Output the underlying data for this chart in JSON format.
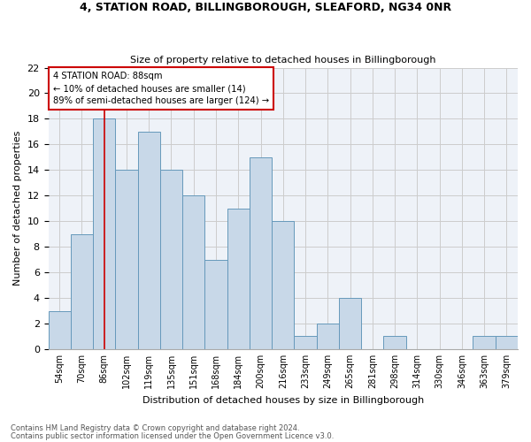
{
  "title1": "4, STATION ROAD, BILLINGBOROUGH, SLEAFORD, NG34 0NR",
  "title2": "Size of property relative to detached houses in Billingborough",
  "xlabel": "Distribution of detached houses by size in Billingborough",
  "ylabel": "Number of detached properties",
  "categories": [
    "54sqm",
    "70sqm",
    "86sqm",
    "102sqm",
    "119sqm",
    "135sqm",
    "151sqm",
    "168sqm",
    "184sqm",
    "200sqm",
    "216sqm",
    "233sqm",
    "249sqm",
    "265sqm",
    "281sqm",
    "298sqm",
    "314sqm",
    "330sqm",
    "346sqm",
    "363sqm",
    "379sqm"
  ],
  "values": [
    3,
    9,
    18,
    14,
    17,
    14,
    12,
    7,
    11,
    15,
    10,
    1,
    2,
    4,
    0,
    1,
    0,
    0,
    0,
    1,
    1
  ],
  "bar_color": "#c8d8e8",
  "bar_edge_color": "#6699bb",
  "red_line_index": 2,
  "annotation_title": "4 STATION ROAD: 88sqm",
  "annotation_line1": "← 10% of detached houses are smaller (14)",
  "annotation_line2": "89% of semi-detached houses are larger (124) →",
  "annotation_box_color": "#ffffff",
  "annotation_box_edge": "#cc0000",
  "red_line_color": "#cc0000",
  "ylim": [
    0,
    22
  ],
  "yticks": [
    0,
    2,
    4,
    6,
    8,
    10,
    12,
    14,
    16,
    18,
    20,
    22
  ],
  "grid_color": "#cccccc",
  "background_color": "#eef2f8",
  "footer1": "Contains HM Land Registry data © Crown copyright and database right 2024.",
  "footer2": "Contains public sector information licensed under the Open Government Licence v3.0."
}
